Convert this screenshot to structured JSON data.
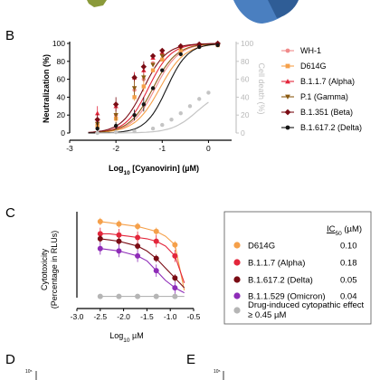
{
  "panels": {
    "B": "B",
    "C": "C",
    "D": "D",
    "E": "E",
    "D_tick": "10⁵",
    "E_tick": "10⁵"
  },
  "colors": {
    "WH1": "#f08a8a",
    "D614G": "#f5a04a",
    "Alpha": "#e3263b",
    "Gamma": "#8a5a12",
    "Beta": "#7a0c14",
    "Delta": "#151515",
    "Omicron": "#8e2cb8",
    "grey": "#b5b5b5",
    "top_shape_green": "#8a9a3a",
    "top_shape_blue": "#4a7fc0"
  },
  "chart_data": [
    {
      "type": "line",
      "xlabel": "Log10 [Cyanovirin] (µM)",
      "ylabel": "Neutralization (%)",
      "ylabel_right": "Cell death (%)",
      "xlim": [
        -3,
        0.5
      ],
      "ylim": [
        0,
        100
      ],
      "xticks": [
        -3,
        -2,
        -1,
        0
      ],
      "yticks": [
        0,
        20,
        40,
        60,
        80,
        100
      ],
      "legend_position": "right",
      "series": [
        {
          "name": "WH-1",
          "color": "#f08a8a",
          "marker": "circle",
          "logIC50": -1.15,
          "hill": 1.7,
          "x": [
            -2.4,
            -2.0,
            -1.6,
            -1.4,
            -1.2,
            -1.0,
            -0.6,
            -0.2,
            0.2
          ],
          "y": [
            12,
            20,
            48,
            60,
            78,
            88,
            96,
            99,
            100
          ]
        },
        {
          "name": "D614G",
          "color": "#f5a04a",
          "marker": "square",
          "logIC50": -1.05,
          "hill": 1.6,
          "x": [
            -2.4,
            -2.0,
            -1.6,
            -1.4,
            -1.2,
            -1.0,
            -0.6,
            -0.2,
            0.2
          ],
          "y": [
            8,
            16,
            40,
            52,
            70,
            82,
            92,
            97,
            98
          ]
        },
        {
          "name": "B.1.1.7 (Alpha)",
          "color": "#e3263b",
          "marker": "triangle-up",
          "logIC50": -1.3,
          "hill": 1.8,
          "x": [
            -2.4,
            -2.0,
            -1.6,
            -1.4,
            -1.2,
            -1.0,
            -0.6,
            -0.2,
            0.2
          ],
          "y": [
            22,
            30,
            62,
            70,
            84,
            90,
            97,
            99,
            100
          ]
        },
        {
          "name": "P.1 (Gamma)",
          "color": "#8a5a12",
          "marker": "triangle-down",
          "logIC50": -1.2,
          "hill": 1.7,
          "x": [
            -2.4,
            -2.0,
            -1.6,
            -1.4,
            -1.2,
            -1.0,
            -0.6,
            -0.2,
            0.2
          ],
          "y": [
            10,
            20,
            50,
            62,
            76,
            86,
            95,
            98,
            99
          ]
        },
        {
          "name": "B.1.351 (Beta)",
          "color": "#7a0c14",
          "marker": "diamond",
          "logIC50": -1.4,
          "hill": 1.8,
          "x": [
            -2.4,
            -2.0,
            -1.6,
            -1.4,
            -1.2,
            -1.0,
            -0.6,
            -0.2,
            0.2
          ],
          "y": [
            15,
            32,
            62,
            74,
            86,
            92,
            97,
            99,
            100
          ]
        },
        {
          "name": "B.1.617.2 (Delta)",
          "color": "#151515",
          "marker": "circle",
          "logIC50": -0.9,
          "hill": 1.9,
          "x": [
            -2.4,
            -2.0,
            -1.6,
            -1.4,
            -1.2,
            -1.0,
            -0.6,
            -0.2,
            0.2
          ],
          "y": [
            5,
            8,
            20,
            32,
            50,
            70,
            88,
            96,
            98
          ]
        },
        {
          "name": "Cell death",
          "color": "#c4c4c4",
          "marker": "circle",
          "axis": "right",
          "x": [
            -2.4,
            -2.0,
            -1.6,
            -1.2,
            -1.0,
            -0.8,
            -0.6,
            -0.4,
            -0.2,
            0.0
          ],
          "y": [
            0,
            1,
            2,
            5,
            9,
            15,
            22,
            30,
            38,
            45
          ]
        }
      ]
    },
    {
      "type": "line",
      "xlabel": "Log10 µM",
      "ylabel": "Cytotoxicity (Percentage in RLUs)",
      "xlim": [
        -3.0,
        -0.5
      ],
      "ylim": [
        0,
        70
      ],
      "xticks": [
        -3.0,
        -2.5,
        -2.0,
        -1.5,
        -1.0,
        -0.5
      ],
      "legend_position": "right",
      "ic50_header": "IC50 (µM)",
      "series": [
        {
          "name": "D614G",
          "color": "#f5a04a",
          "ic50": "0.10",
          "x": [
            -2.5,
            -2.3,
            -2.1,
            -1.9,
            -1.7,
            -1.5,
            -1.3,
            -1.1,
            -0.9,
            -0.7
          ],
          "y": [
            62,
            61,
            60,
            59,
            58,
            56,
            54,
            50,
            43,
            6
          ]
        },
        {
          "name": "B.1.1.7 (Alpha)",
          "color": "#e3263b",
          "ic50": "0.18",
          "x": [
            -2.5,
            -2.3,
            -2.1,
            -1.9,
            -1.7,
            -1.5,
            -1.3,
            -1.1,
            -0.9,
            -0.7
          ],
          "y": [
            52,
            52,
            51,
            50,
            49,
            48,
            46,
            42,
            34,
            12
          ]
        },
        {
          "name": "B.1.617.2 (Delta)",
          "color": "#7a0c14",
          "ic50": "0.05",
          "x": [
            -2.5,
            -2.3,
            -2.1,
            -1.9,
            -1.7,
            -1.5,
            -1.3,
            -1.1,
            -0.9,
            -0.7
          ],
          "y": [
            48,
            47,
            46,
            44,
            42,
            38,
            32,
            24,
            16,
            8
          ]
        },
        {
          "name": "B.1.1.529 (Omicron)",
          "color": "#8e2cb8",
          "ic50": "0.04",
          "x": [
            -2.5,
            -2.3,
            -2.1,
            -1.9,
            -1.7,
            -1.5,
            -1.3,
            -1.1,
            -0.9,
            -0.7
          ],
          "y": [
            40,
            39,
            38,
            36,
            34,
            30,
            22,
            14,
            8,
            4
          ]
        },
        {
          "name": "Drug-induced cytopathic effect ≥ 0.45 µM",
          "color": "#b5b5b5",
          "x": [
            -2.5,
            -2.3,
            -2.1,
            -1.9,
            -1.7,
            -1.5,
            -1.3,
            -1.1,
            -0.9,
            -0.7
          ],
          "y": [
            1,
            1,
            1,
            1,
            1,
            1,
            1,
            1,
            1,
            1
          ]
        }
      ]
    }
  ]
}
